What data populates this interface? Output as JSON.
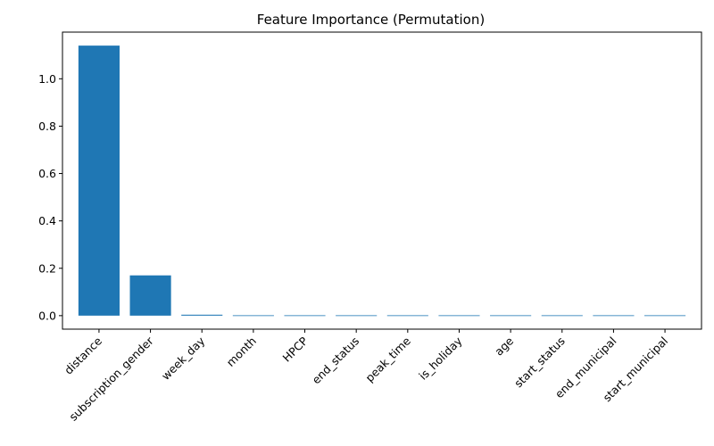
{
  "chart_data": {
    "type": "bar",
    "title": "Feature Importance (Permutation)",
    "xlabel": "",
    "ylabel": "",
    "categories": [
      "distance",
      "subscription_gender",
      "week_day",
      "month",
      "HPCP",
      "end_status",
      "peak_time",
      "is_holiday",
      "age",
      "start_status",
      "end_municipal",
      "start_municipal"
    ],
    "values": [
      1.14,
      0.17,
      0.004,
      0.0,
      0.0,
      0.0,
      0.0,
      0.0,
      0.0,
      0.0,
      -0.002,
      -0.002
    ],
    "ylim": [
      -0.057,
      1.197
    ],
    "yticks": [
      0.0,
      0.2,
      0.4,
      0.6,
      0.8,
      1.0
    ],
    "ytick_labels": [
      "0.0",
      "0.2",
      "0.4",
      "0.6",
      "0.8",
      "1.0"
    ],
    "grid": false,
    "legend": "none",
    "bar_color": "#1f77b4"
  }
}
